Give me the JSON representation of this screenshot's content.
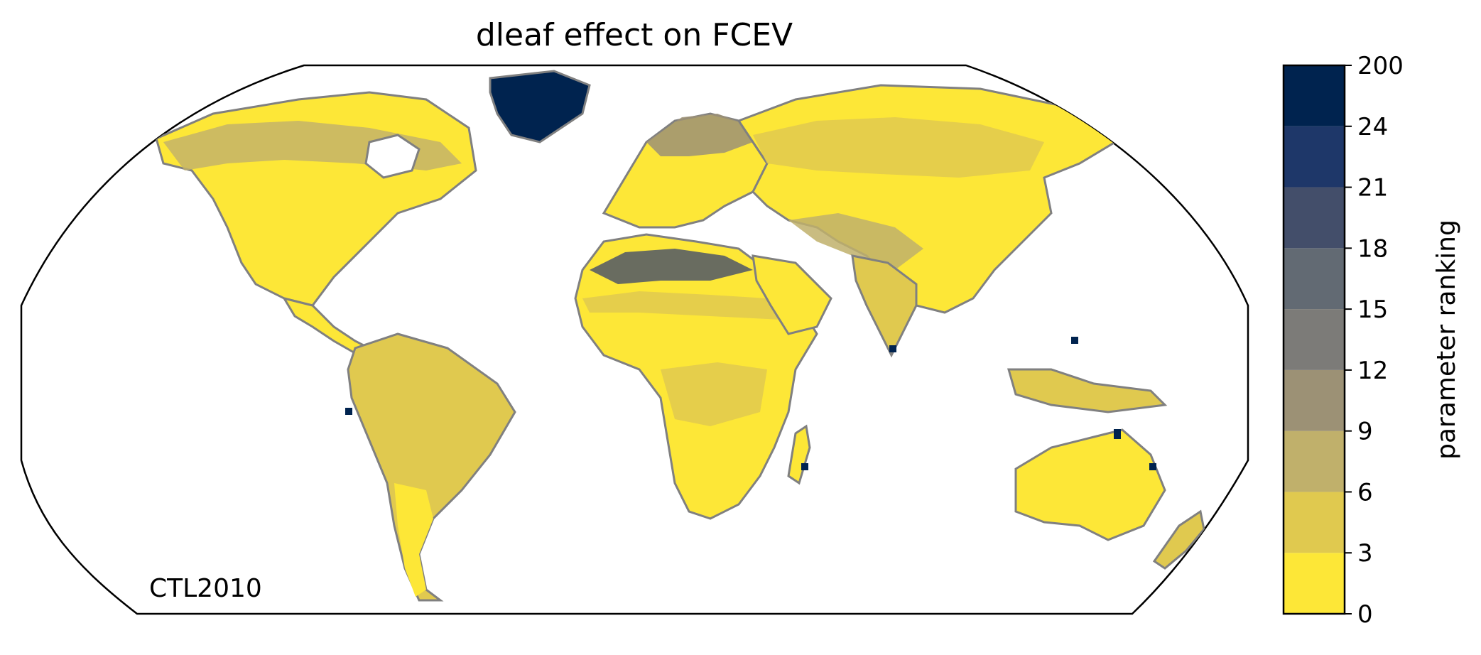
{
  "figure": {
    "title": "dleaf effect on FCEV",
    "annotation": "CTL2010"
  },
  "colorbar": {
    "label": "parameter ranking",
    "ticks": [
      "0",
      "3",
      "6",
      "9",
      "12",
      "15",
      "18",
      "21",
      "24",
      "200"
    ],
    "colors": [
      "#fde737",
      "#e0c94f",
      "#c0b06b",
      "#9c9175",
      "#7c7b78",
      "#626a73",
      "#434e6a",
      "#1e3769",
      "#00234f"
    ]
  },
  "map": {
    "projection": "robinson",
    "land_outline_color": "#808080",
    "legend_bins_shown_on_land": {
      "dominant": "0-3",
      "tropics_south_america_and_south_asia": "3-6",
      "high_latitudes_and_sahara_edges": "12-21",
      "greenland": "24-200"
    }
  }
}
